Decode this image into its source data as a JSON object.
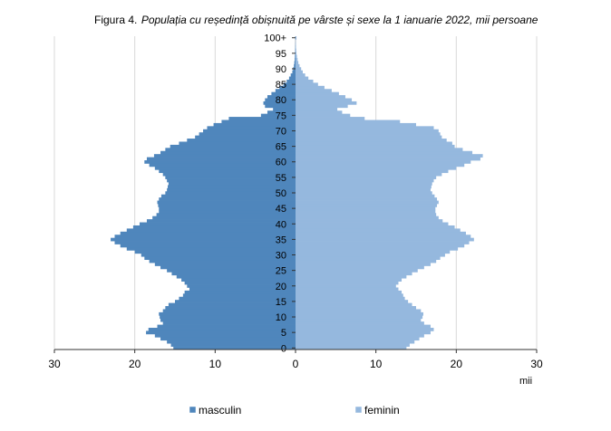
{
  "chart_data": {
    "type": "bar",
    "orientation": "horizontal",
    "title_prefix": "Figura 4.",
    "title_rest": "Populația cu reședință obișnuită pe vârste și sexe la 1 ianuarie 2022, mii persoane",
    "x_unit": "mii",
    "xlim": [
      -30,
      30
    ],
    "x_ticks": [
      -30,
      -20,
      -10,
      0,
      10,
      20,
      30
    ],
    "x_tick_labels": [
      "30",
      "20",
      "10",
      "0",
      "10",
      "20",
      "30"
    ],
    "age_tick_labels": [
      "0",
      "5",
      "10",
      "15",
      "20",
      "25",
      "30",
      "35",
      "40",
      "45",
      "50",
      "55",
      "60",
      "65",
      "70",
      "75",
      "80",
      "85",
      "90",
      "95",
      "100+"
    ],
    "grid": "vertical",
    "legend_position": "bottom",
    "colors": {
      "masculin": "#4F86BC",
      "feminin": "#95B8DE"
    },
    "categories": [
      "0",
      "1",
      "2",
      "3",
      "4",
      "5",
      "6",
      "7",
      "8",
      "9",
      "10",
      "11",
      "12",
      "13",
      "14",
      "15",
      "16",
      "17",
      "18",
      "19",
      "20",
      "21",
      "22",
      "23",
      "24",
      "25",
      "26",
      "27",
      "28",
      "29",
      "30",
      "31",
      "32",
      "33",
      "34",
      "35",
      "36",
      "37",
      "38",
      "39",
      "40",
      "41",
      "42",
      "43",
      "44",
      "45",
      "46",
      "47",
      "48",
      "49",
      "50",
      "51",
      "52",
      "53",
      "54",
      "55",
      "56",
      "57",
      "58",
      "59",
      "60",
      "61",
      "62",
      "63",
      "64",
      "65",
      "66",
      "67",
      "68",
      "69",
      "70",
      "71",
      "72",
      "73",
      "74",
      "75",
      "76",
      "77",
      "78",
      "79",
      "80",
      "81",
      "82",
      "83",
      "84",
      "85",
      "86",
      "87",
      "88",
      "89",
      "90",
      "91",
      "92",
      "93",
      "94",
      "95",
      "96",
      "97",
      "98",
      "99",
      "100+"
    ],
    "series": [
      {
        "name": "masculin",
        "values": [
          15.2,
          15.5,
          16.0,
          16.8,
          17.5,
          18.6,
          18.3,
          17.2,
          16.5,
          16.8,
          16.9,
          17.0,
          16.5,
          16.2,
          15.8,
          15.0,
          14.5,
          14.0,
          13.8,
          13.2,
          13.5,
          13.8,
          14.2,
          14.8,
          15.4,
          16.0,
          16.8,
          17.5,
          18.2,
          18.8,
          19.2,
          20.0,
          21.0,
          21.8,
          22.5,
          23.0,
          22.5,
          21.8,
          21.0,
          20.2,
          19.4,
          18.5,
          17.8,
          17.3,
          17.0,
          17.0,
          17.1,
          17.2,
          17.0,
          16.7,
          16.2,
          16.0,
          15.9,
          15.8,
          16.0,
          16.2,
          16.5,
          17.0,
          17.5,
          18.2,
          18.8,
          18.5,
          17.6,
          16.8,
          16.2,
          15.6,
          14.5,
          13.5,
          12.5,
          12.0,
          11.5,
          11.0,
          10.2,
          9.2,
          8.3,
          4.3,
          3.5,
          2.8,
          3.8,
          4.0,
          3.8,
          3.5,
          3.0,
          2.5,
          2.0,
          1.5,
          1.1,
          0.8,
          0.6,
          0.4,
          0.3,
          0.2,
          0.15,
          0.1,
          0.08,
          0.05,
          0.04,
          0.03,
          0.02,
          0.01,
          0.03
        ]
      },
      {
        "name": "feminin",
        "values": [
          13.8,
          14.2,
          14.8,
          15.4,
          16.0,
          16.8,
          17.2,
          16.8,
          16.0,
          15.6,
          15.8,
          15.9,
          15.6,
          15.0,
          14.5,
          14.0,
          13.6,
          13.4,
          13.2,
          12.8,
          12.5,
          12.8,
          13.2,
          13.8,
          14.5,
          15.2,
          16.0,
          16.8,
          17.5,
          18.0,
          18.6,
          19.2,
          20.2,
          21.0,
          21.6,
          22.2,
          21.8,
          21.2,
          20.5,
          19.8,
          19.0,
          18.3,
          17.8,
          17.5,
          17.4,
          17.4,
          17.6,
          17.8,
          17.6,
          17.3,
          17.0,
          16.8,
          16.9,
          17.0,
          17.2,
          17.5,
          18.2,
          19.0,
          20.0,
          21.0,
          21.8,
          23.0,
          23.3,
          22.0,
          20.8,
          19.8,
          19.5,
          18.8,
          18.2,
          18.0,
          17.8,
          17.2,
          15.0,
          13.0,
          8.6,
          6.8,
          5.8,
          5.2,
          6.5,
          7.6,
          7.0,
          6.2,
          5.4,
          4.5,
          3.6,
          2.8,
          2.2,
          1.6,
          1.2,
          0.9,
          0.7,
          0.5,
          0.35,
          0.25,
          0.18,
          0.12,
          0.09,
          0.06,
          0.04,
          0.03,
          0.12
        ]
      }
    ]
  }
}
